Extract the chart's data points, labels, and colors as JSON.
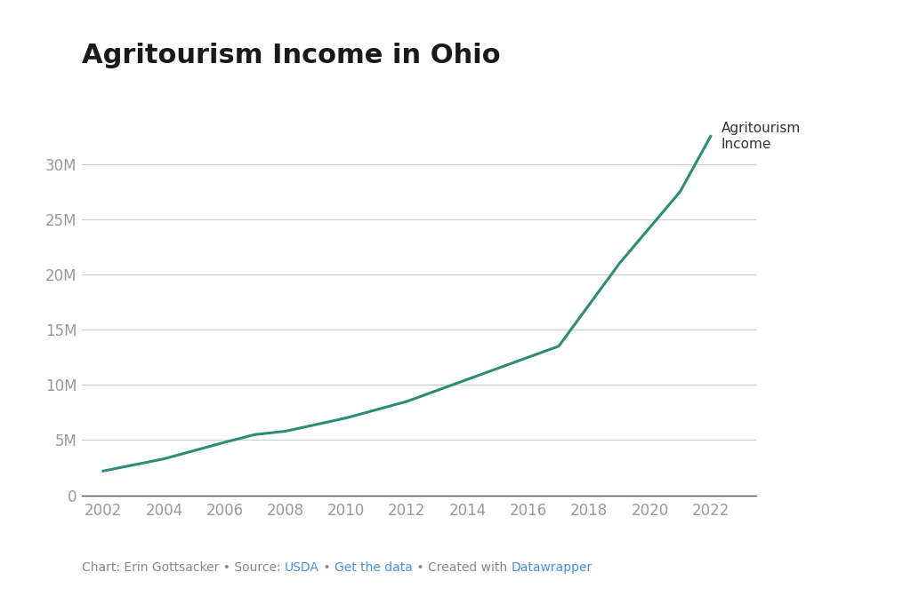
{
  "title": "Agritourism Income in Ohio",
  "years": [
    2002,
    2004,
    2006,
    2007,
    2008,
    2010,
    2012,
    2014,
    2016,
    2017,
    2019,
    2021,
    2022
  ],
  "values": [
    2200000,
    3300000,
    4800000,
    5500000,
    5800000,
    7000000,
    8500000,
    10500000,
    12500000,
    13500000,
    21000000,
    27500000,
    32500000
  ],
  "line_color": "#2e8b74",
  "line_width": 2.2,
  "background_color": "#ffffff",
  "title_color": "#1a1a1a",
  "title_fontsize": 22,
  "title_fontweight": "bold",
  "axis_tick_color": "#999999",
  "axis_tick_fontsize": 12,
  "grid_color": "#cccccc",
  "label_text": "Agritourism\nIncome",
  "label_color": "#333333",
  "label_fontsize": 11,
  "footer_color": "#888888",
  "footer_link_color": "#4a90d9",
  "footer_fontsize": 10,
  "ylim": [
    0,
    35000000
  ],
  "yticks": [
    0,
    5000000,
    10000000,
    15000000,
    20000000,
    25000000,
    30000000
  ],
  "xticks": [
    2002,
    2004,
    2006,
    2008,
    2010,
    2012,
    2014,
    2016,
    2018,
    2020,
    2022
  ],
  "xlim": [
    2001.3,
    2023.5
  ]
}
